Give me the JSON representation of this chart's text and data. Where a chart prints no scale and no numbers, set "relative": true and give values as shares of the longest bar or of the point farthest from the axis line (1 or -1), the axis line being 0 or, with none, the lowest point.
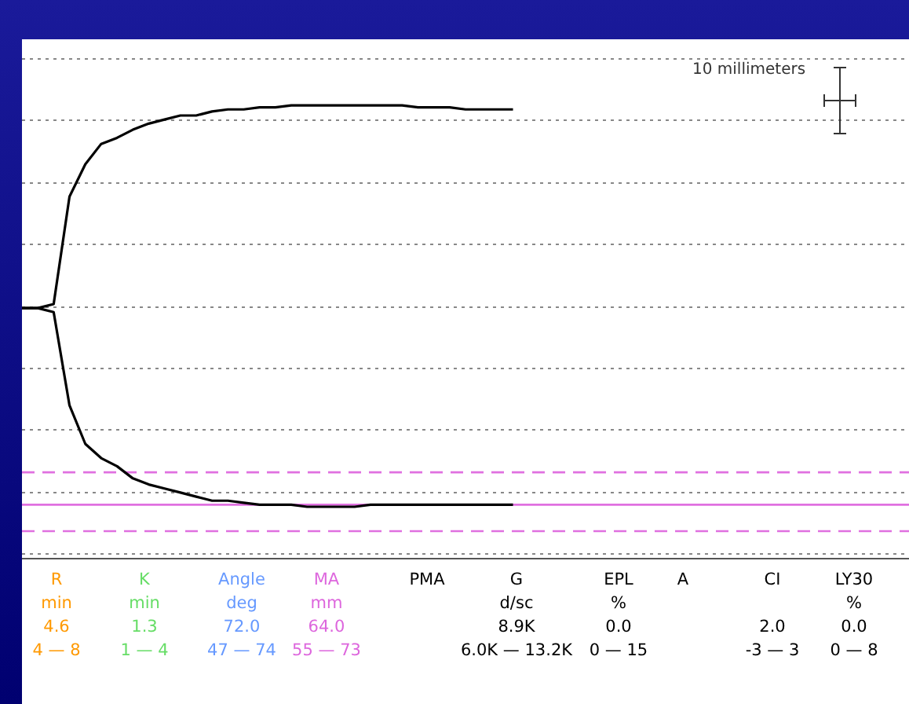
{
  "chart_data": {
    "type": "line",
    "relative": true,
    "grid": true,
    "legend": false,
    "marker": "none",
    "line_style": "solid",
    "categories": [
      null,
      null,
      null,
      null,
      null,
      null,
      null,
      null,
      null,
      null,
      null,
      null,
      null,
      null,
      null,
      null,
      null,
      null,
      null,
      null,
      null,
      null,
      null,
      null,
      null,
      null,
      null,
      null,
      null,
      null,
      null,
      null,
      null,
      null,
      null,
      null,
      null,
      null,
      null,
      null,
      null,
      null,
      null,
      null,
      null,
      null,
      null,
      null,
      null,
      null,
      null,
      null,
      null,
      null,
      null,
      null,
      null
    ],
    "series": [
      {
        "color": "#000000",
        "values": [
          0,
          0,
          0.02,
          0.55,
          0.71,
          0.81,
          0.84,
          0.88,
          0.91,
          0.93,
          0.95,
          0.95,
          0.97,
          0.98,
          0.98,
          0.99,
          0.99,
          1,
          1,
          1,
          1,
          1,
          1,
          1,
          1,
          0.99,
          0.99,
          0.99,
          0.98,
          0.98,
          0.98,
          0.98,
          null,
          null,
          null,
          null,
          null,
          null,
          null,
          null,
          null,
          null,
          null,
          null,
          null,
          null,
          null,
          null,
          null,
          null,
          null,
          null,
          null,
          null,
          null,
          null,
          null
        ]
      },
      {
        "color": "#000000",
        "values": [
          0,
          0,
          -0.02,
          -0.48,
          -0.67,
          -0.74,
          -0.78,
          -0.84,
          -0.87,
          -0.89,
          -0.91,
          -0.93,
          -0.95,
          -0.95,
          -0.96,
          -0.97,
          -0.97,
          -0.97,
          -0.98,
          -0.98,
          -0.98,
          -0.98,
          -0.97,
          -0.97,
          -0.97,
          -0.97,
          -0.97,
          -0.97,
          -0.97,
          -0.97,
          -0.97,
          -0.97,
          null,
          null,
          null,
          null,
          null,
          null,
          null,
          null,
          null,
          null,
          null,
          null,
          null,
          null,
          null,
          null,
          null,
          null,
          null,
          null,
          null,
          null,
          null,
          null,
          null
        ]
      }
    ],
    "ref_lines": [
      {
        "axis": "y",
        "value": -0.81,
        "color": "#e070e0",
        "line_style": "dashed"
      },
      {
        "axis": "y",
        "value": -0.97,
        "color": "#e070e0",
        "line_style": "solid"
      },
      {
        "axis": "y",
        "value": -1.1,
        "color": "#e070e0",
        "line_style": "dashed"
      }
    ],
    "annotations": [
      "10 millimeters",
      "R\nmin\n4.6\n4 — 8",
      "K\nmin\n1.3\n1 — 4",
      "Angle\ndeg\n72.0\n47 — 74",
      "MA\nmm\n64.0\n55 — 73",
      "PMA",
      "G\nd/sc\n8.9K\n6.0K — 13.2K",
      "EPL\n%\n0.0\n0 — 15",
      "A",
      "CI\n\n2.0\n-3 — 3",
      "LY30\n%\n0.0\n0 — 8"
    ]
  }
}
